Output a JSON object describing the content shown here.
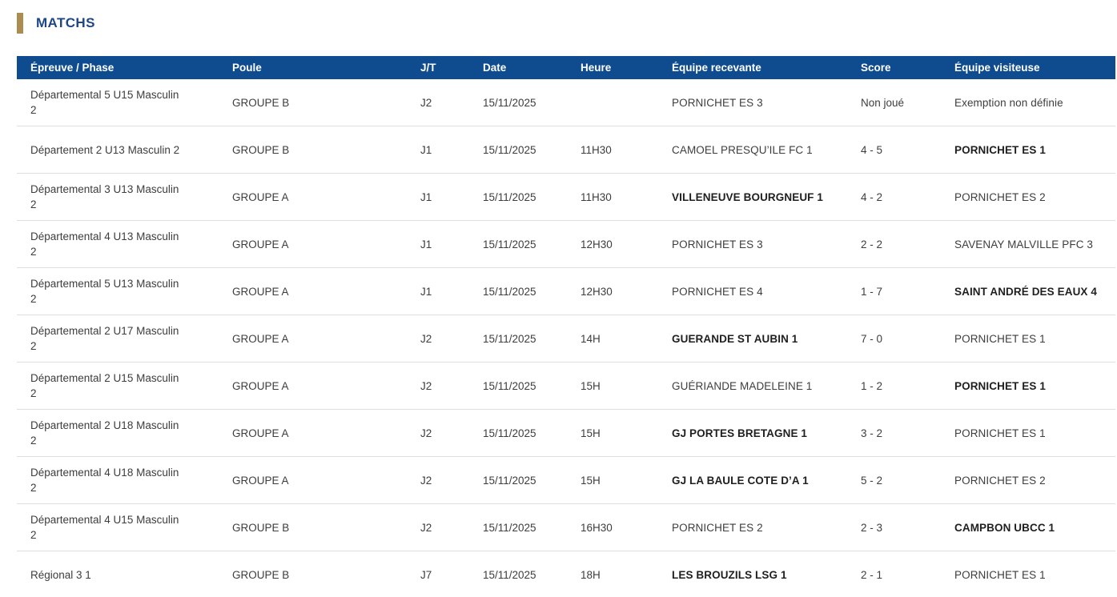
{
  "page": {
    "title": "MATCHS"
  },
  "colors": {
    "header_bg": "#0f4c8f",
    "title_text": "#1e4786",
    "accent_gold": "#ad8c51",
    "row_text": "#3d3d3d",
    "bold_team_text": "#1f1f1f",
    "separator": "#dedede",
    "header_text": "#ffffff"
  },
  "table": {
    "columns": [
      {
        "key": "epreuve",
        "label": "Épreuve / Phase"
      },
      {
        "key": "poule",
        "label": "Poule"
      },
      {
        "key": "jt",
        "label": "J/T"
      },
      {
        "key": "date",
        "label": "Date"
      },
      {
        "key": "heure",
        "label": "Heure"
      },
      {
        "key": "home",
        "label": "Équipe recevante"
      },
      {
        "key": "score",
        "label": "Score"
      },
      {
        "key": "away",
        "label": "Équipe visiteuse"
      }
    ],
    "rows": [
      {
        "epreuve": "Départemental 5 U15 Masculin 2",
        "poule": "GROUPE B",
        "jt": "J2",
        "date": "15/11/2025",
        "heure": "",
        "home": "PORNICHET ES 3",
        "home_bold": false,
        "score": "Non joué",
        "away": "Exemption non définie",
        "away_bold": false
      },
      {
        "epreuve": "Département 2 U13 Masculin 2",
        "poule": "GROUPE B",
        "jt": "J1",
        "date": "15/11/2025",
        "heure": "11H30",
        "home": "CAMOEL PRESQU’ILE FC 1",
        "home_bold": false,
        "score": "4 - 5",
        "away": "PORNICHET ES 1",
        "away_bold": true
      },
      {
        "epreuve": "Départemental 3 U13 Masculin 2",
        "poule": "GROUPE A",
        "jt": "J1",
        "date": "15/11/2025",
        "heure": "11H30",
        "home": "VILLENEUVE BOURGNEUF 1",
        "home_bold": true,
        "score": "4 - 2",
        "away": "PORNICHET ES 2",
        "away_bold": false
      },
      {
        "epreuve": "Départemental 4 U13 Masculin 2",
        "poule": "GROUPE A",
        "jt": "J1",
        "date": "15/11/2025",
        "heure": "12H30",
        "home": "PORNICHET ES 3",
        "home_bold": false,
        "score": "2 - 2",
        "away": "SAVENAY MALVILLE PFC 3",
        "away_bold": false
      },
      {
        "epreuve": "Départemental 5 U13 Masculin 2",
        "poule": "GROUPE A",
        "jt": "J1",
        "date": "15/11/2025",
        "heure": "12H30",
        "home": "PORNICHET ES 4",
        "home_bold": false,
        "score": "1 - 7",
        "away": "SAINT ANDRÉ DES EAUX 4",
        "away_bold": true
      },
      {
        "epreuve": "Départemental 2 U17 Masculin 2",
        "poule": "GROUPE A",
        "jt": "J2",
        "date": "15/11/2025",
        "heure": "14H",
        "home": "GUERANDE ST AUBIN 1",
        "home_bold": true,
        "score": "7 - 0",
        "away": "PORNICHET ES 1",
        "away_bold": false
      },
      {
        "epreuve": "Départemental 2 U15 Masculin 2",
        "poule": "GROUPE A",
        "jt": "J2",
        "date": "15/11/2025",
        "heure": "15H",
        "home": "GUÉRIANDE MADELEINE 1",
        "home_bold": false,
        "score": "1 - 2",
        "away": "PORNICHET ES 1",
        "away_bold": true
      },
      {
        "epreuve": "Départemental 2 U18 Masculin 2",
        "poule": "GROUPE A",
        "jt": "J2",
        "date": "15/11/2025",
        "heure": "15H",
        "home": "GJ PORTES BRETAGNE 1",
        "home_bold": true,
        "score": "3 - 2",
        "away": "PORNICHET ES 1",
        "away_bold": false
      },
      {
        "epreuve": "Départemental 4 U18 Masculin 2",
        "poule": "GROUPE A",
        "jt": "J2",
        "date": "15/11/2025",
        "heure": "15H",
        "home": "GJ LA BAULE COTE D’A 1",
        "home_bold": true,
        "score": "5 - 2",
        "away": "PORNICHET ES 2",
        "away_bold": false
      },
      {
        "epreuve": "Départemental 4 U15 Masculin 2",
        "poule": "GROUPE B",
        "jt": "J2",
        "date": "15/11/2025",
        "heure": "16H30",
        "home": "PORNICHET ES 2",
        "home_bold": false,
        "score": "2 - 3",
        "away": "CAMPBON UBCC 1",
        "away_bold": true
      },
      {
        "epreuve": "Régional 3 1",
        "poule": "GROUPE B",
        "jt": "J7",
        "date": "15/11/2025",
        "heure": "18H",
        "home": "LES BROUZILS LSG 1",
        "home_bold": true,
        "score": "2 - 1",
        "away": "PORNICHET ES 1",
        "away_bold": false
      }
    ]
  }
}
